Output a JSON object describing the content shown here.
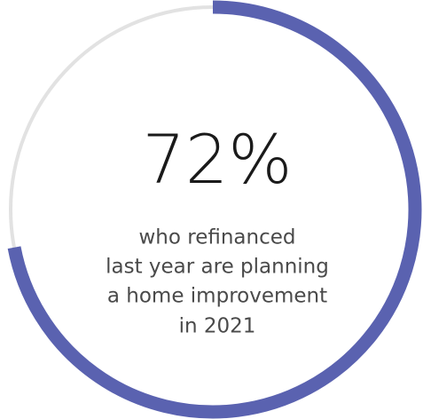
{
  "chart_data": {
    "type": "donut",
    "values": [
      72
    ],
    "value_labels": [
      "72%"
    ],
    "ylim": [
      0,
      100
    ],
    "color": "#5a62b0",
    "track_color": "#e2e2e2",
    "caption": [
      "who refinanced",
      "last year are planning",
      "a home improvement",
      "in 2021"
    ]
  }
}
